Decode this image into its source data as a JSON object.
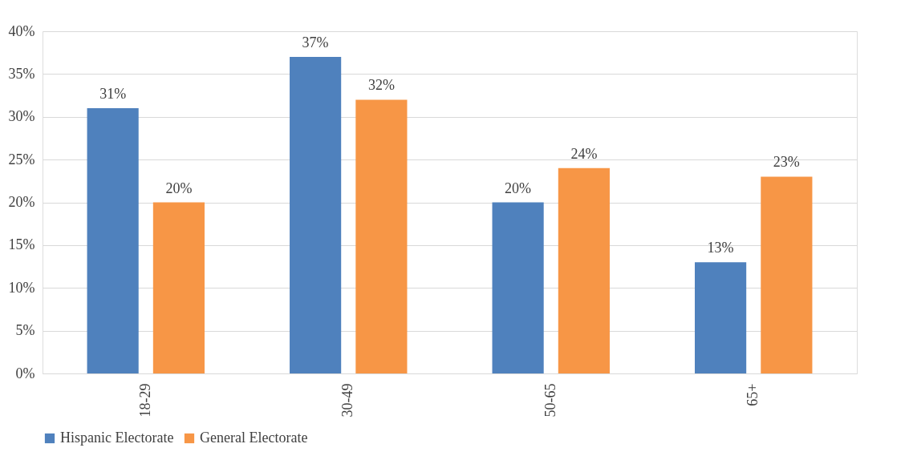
{
  "chart_data": {
    "type": "bar",
    "categories": [
      "18-29",
      "30-49",
      "50-65",
      "65+"
    ],
    "series": [
      {
        "name": "Hispanic Electorate",
        "color": "#4f81bd",
        "values": [
          31,
          37,
          20,
          13
        ],
        "value_labels": [
          "31%",
          "37%",
          "20%",
          "13%"
        ]
      },
      {
        "name": "General Electorate",
        "color": "#f79646",
        "values": [
          20,
          32,
          24,
          23
        ],
        "value_labels": [
          "20%",
          "32%",
          "24%",
          "23%"
        ]
      }
    ],
    "ylim": [
      0,
      40
    ],
    "yticks": [
      {
        "value": 0,
        "label": "0%"
      },
      {
        "value": 5,
        "label": "5%"
      },
      {
        "value": 10,
        "label": "10%"
      },
      {
        "value": 15,
        "label": "15%"
      },
      {
        "value": 20,
        "label": "20%"
      },
      {
        "value": 25,
        "label": "25%"
      },
      {
        "value": 30,
        "label": "30%"
      },
      {
        "value": 35,
        "label": "35%"
      },
      {
        "value": 40,
        "label": "40%"
      }
    ],
    "grid": "y",
    "legend": "bottom"
  }
}
